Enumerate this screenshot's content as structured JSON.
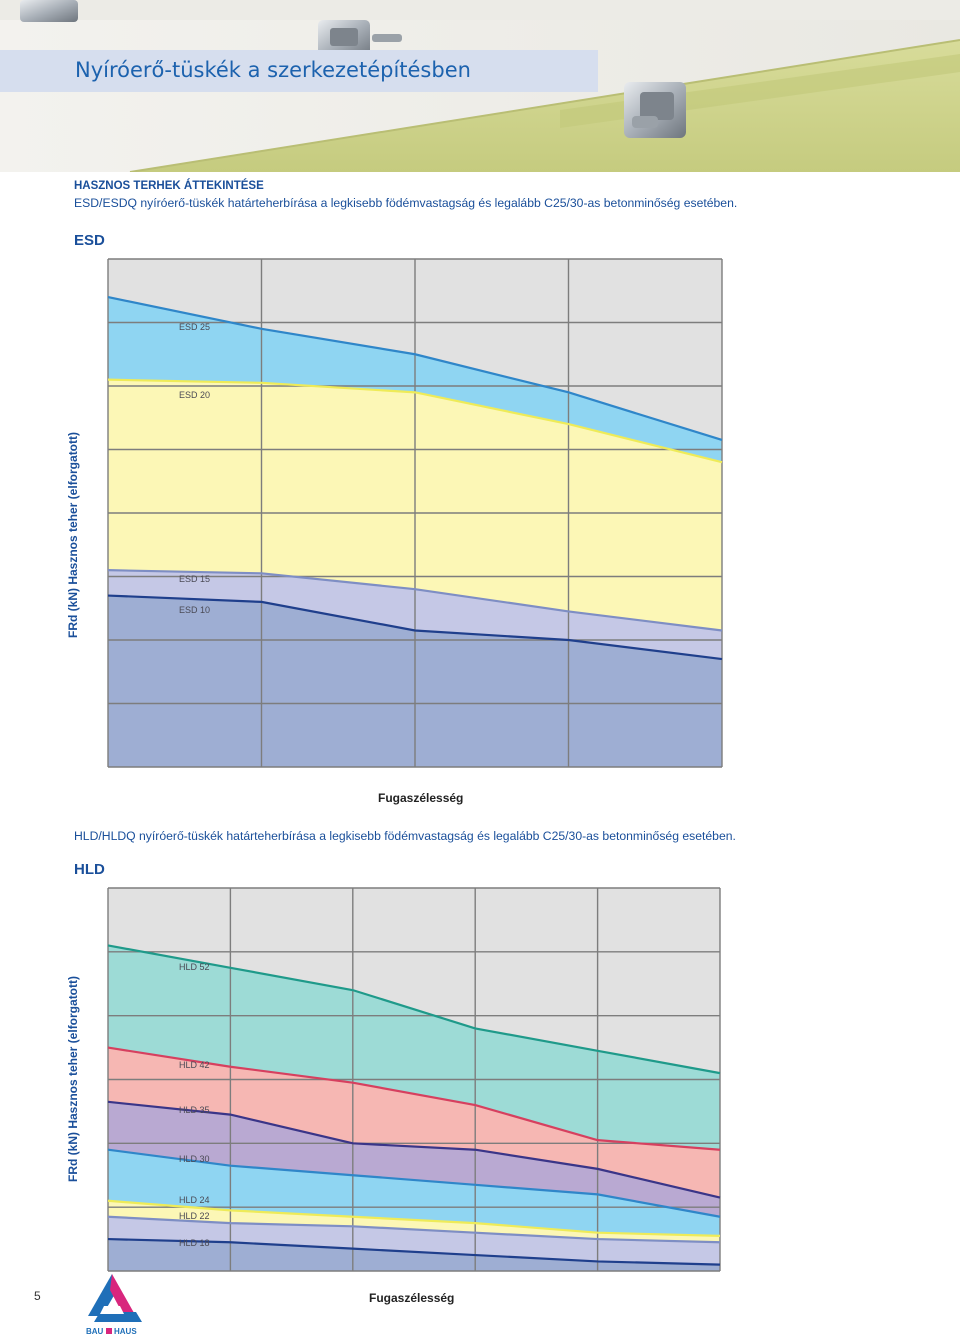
{
  "header": {
    "title": "Nyíróerő-tüskék a szerkezetépítésben"
  },
  "section": {
    "heading": "HASZNOS TERHEK ÁTTEKINTÉSE",
    "esd_intro": "ESD/ESDQ nyíróerő-tüskék határteherbírása a legkisebb födémvastagság és legalább C25/30-as betonminőség esetében.",
    "hld_intro": "HLD/HLDQ nyíróerő-tüskék határteherbírása a legkisebb födémvastagság és legalább C25/30-as betonminőség esetében."
  },
  "chart_data": [
    {
      "type": "area",
      "title": "ESD",
      "xlabel": "Fugaszélesség",
      "ylabel": "FRd (kN) Hasznos teher (elforgatott)",
      "x": [
        0,
        1,
        2,
        3,
        4
      ],
      "xlim": [
        0,
        4
      ],
      "ylim": [
        0,
        8
      ],
      "grid": true,
      "series": [
        {
          "name": "ESD 25",
          "values": [
            7.4,
            6.9,
            6.5,
            5.9,
            5.15
          ],
          "color": "#8fd5f2",
          "line": "#2f86c9"
        },
        {
          "name": "ESD 20",
          "values": [
            6.1,
            6.05,
            5.9,
            5.4,
            4.8
          ],
          "color": "#fcf7b6",
          "line": "#eeeb58"
        },
        {
          "name": "ESD 15",
          "values": [
            3.1,
            3.05,
            2.8,
            2.45,
            2.15
          ],
          "color": "#c5c8e6",
          "line": "#7e8ec4"
        },
        {
          "name": "ESD 10",
          "values": [
            2.7,
            2.6,
            2.15,
            2.0,
            1.7
          ],
          "color": "#9eaed3",
          "line": "#1f3f8c"
        }
      ]
    },
    {
      "type": "area",
      "title": "HLD",
      "xlabel": "Fugaszélesség",
      "ylabel": "FRd (kN) Hasznos teher (elforgatott)",
      "x": [
        0,
        1,
        2,
        3,
        4,
        5
      ],
      "xlim": [
        0,
        5
      ],
      "ylim": [
        0,
        6
      ],
      "grid": true,
      "series": [
        {
          "name": "HLD 52",
          "values": [
            5.1,
            4.75,
            4.4,
            3.8,
            3.45,
            3.1
          ],
          "color": "#9ddbd6",
          "line": "#1f9a8a"
        },
        {
          "name": "HLD 42",
          "values": [
            3.5,
            3.2,
            2.95,
            2.6,
            2.05,
            1.9
          ],
          "color": "#f6b7b3",
          "line": "#d6405f"
        },
        {
          "name": "HLD 35",
          "values": [
            2.65,
            2.45,
            2.0,
            1.9,
            1.6,
            1.15
          ],
          "color": "#b9a9d2",
          "line": "#3a3588"
        },
        {
          "name": "HLD 30",
          "values": [
            1.9,
            1.65,
            1.5,
            1.35,
            1.2,
            0.85
          ],
          "color": "#8fd5f2",
          "line": "#2f86c9"
        },
        {
          "name": "HLD 24",
          "values": [
            1.1,
            0.95,
            0.85,
            0.75,
            0.6,
            0.55
          ],
          "color": "#fcf7b6",
          "line": "#eeeb58"
        },
        {
          "name": "HLD 22",
          "values": [
            0.85,
            0.75,
            0.7,
            0.6,
            0.5,
            0.45
          ],
          "color": "#c5c8e6",
          "line": "#7e8ec4"
        },
        {
          "name": "HLD 18",
          "values": [
            0.5,
            0.45,
            0.35,
            0.25,
            0.15,
            0.1
          ],
          "color": "#9eaed3",
          "line": "#1f3f8c"
        }
      ]
    }
  ],
  "footer": {
    "page_number": "5",
    "logo_text": "BAU HAUS"
  }
}
